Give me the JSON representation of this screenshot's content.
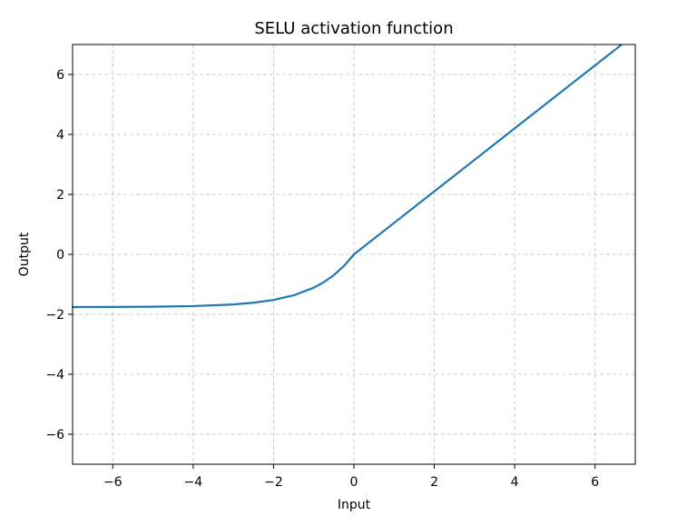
{
  "chart_data": {
    "type": "line",
    "title": "SELU activation function",
    "xlabel": "Input",
    "ylabel": "Output",
    "xlim": [
      -7,
      7
    ],
    "ylim": [
      -7,
      7
    ],
    "grid": true,
    "x_ticks": [
      -6,
      -4,
      -2,
      0,
      2,
      4,
      6
    ],
    "x_tick_labels": [
      "−6",
      "−4",
      "−2",
      "0",
      "2",
      "4",
      "6"
    ],
    "y_ticks": [
      -6,
      -4,
      -2,
      0,
      2,
      4,
      6
    ],
    "y_tick_labels": [
      "−6",
      "−4",
      "−2",
      "0",
      "2",
      "4",
      "6"
    ],
    "series": [
      {
        "color": "#1f77b4",
        "x": [
          -7,
          -6,
          -5,
          -4,
          -3,
          -2.5,
          -2,
          -1.5,
          -1,
          -0.75,
          -0.5,
          -0.25,
          0,
          1,
          2,
          3,
          4,
          5,
          6,
          6.65
        ],
        "y": [
          -1.757,
          -1.754,
          -1.746,
          -1.726,
          -1.671,
          -1.614,
          -1.52,
          -1.367,
          -1.111,
          -0.928,
          -0.692,
          -0.388,
          0,
          1.051,
          2.101,
          3.152,
          4.203,
          5.254,
          6.304,
          6.987
        ]
      }
    ]
  }
}
